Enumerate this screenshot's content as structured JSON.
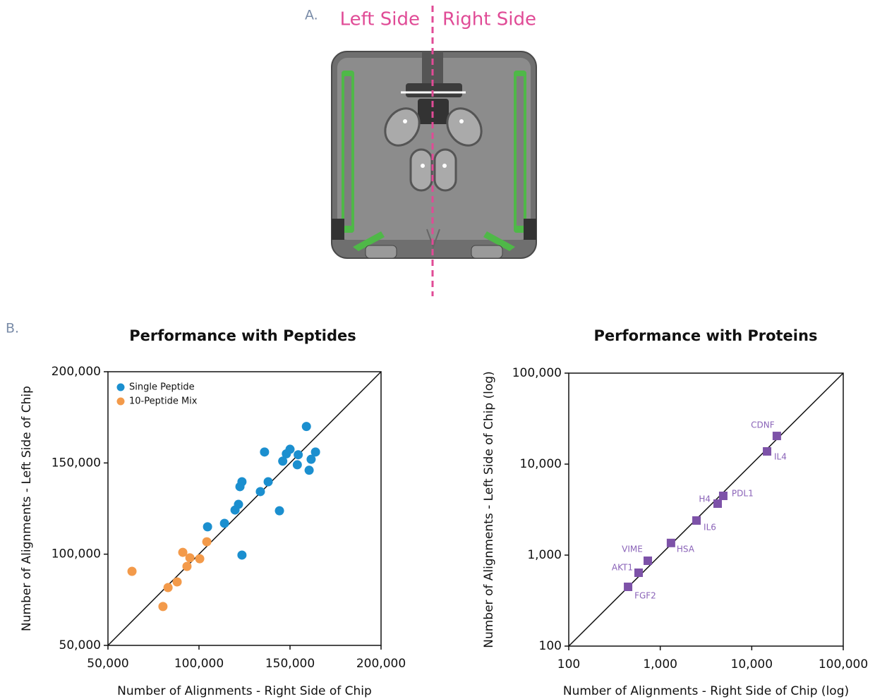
{
  "panel_a": {
    "label": "A.",
    "left_side": "Left Side",
    "right_side": "Right Side"
  },
  "panel_b": {
    "label": "B."
  },
  "chart_data": [
    {
      "type": "scatter",
      "title": "Performance with Peptides",
      "x_label": "Number of Alignments - Right Side of Chip",
      "y_label": "Number of Alignments - Left Side of Chip",
      "xlim": [
        50000,
        200000
      ],
      "ylim": [
        50000,
        200000
      ],
      "xticks": [
        {
          "value": 50000,
          "label": "50,000"
        },
        {
          "value": 100000,
          "label": "100,000"
        },
        {
          "value": 150000,
          "label": "150,000"
        },
        {
          "value": 200000,
          "label": "200,000"
        }
      ],
      "yticks": [
        {
          "value": 50000,
          "label": "50,000"
        },
        {
          "value": 100000,
          "label": "100,000"
        },
        {
          "value": 150000,
          "label": "150,000"
        },
        {
          "value": 200000,
          "label": "200,000"
        }
      ],
      "legend": "upper left",
      "diagonal_line": true,
      "marker": "circle",
      "series": [
        {
          "name": "Single Peptide",
          "color": "#1b8fcf",
          "x": [
            159000,
            136000,
            164000,
            150000,
            148000,
            154500,
            146000,
            161600,
            154000,
            160500,
            123600,
            122500,
            138000,
            133700,
            121700,
            119800,
            144200,
            114000,
            104700,
            123600
          ],
          "values": [
            170000,
            156000,
            156000,
            157500,
            155000,
            154500,
            151000,
            152000,
            149000,
            146000,
            139700,
            137000,
            139700,
            134300,
            127300,
            124200,
            123800,
            116900,
            115000,
            99500
          ]
        },
        {
          "name": "10-Peptide Mix",
          "color": "#f39a4a",
          "x": [
            63200,
            80200,
            83000,
            88000,
            91100,
            93400,
            95000,
            100400,
            104300
          ],
          "values": [
            90600,
            71300,
            81700,
            84800,
            101000,
            93300,
            98000,
            97500,
            106800
          ]
        }
      ]
    },
    {
      "type": "scatter",
      "title": "Performance with Proteins",
      "x_label": "Number of Alignments - Right Side of Chip (log)",
      "y_label": "Number of Alignments - Left Side of Chip (log)",
      "xscale": "log",
      "yscale": "log",
      "xlim": [
        100,
        100000
      ],
      "ylim": [
        100,
        100000
      ],
      "xticks": [
        100,
        {
          "value": 1000,
          "label": "1,000"
        },
        {
          "value": 10000,
          "label": "10,000"
        },
        {
          "value": 100000,
          "label": "100,000"
        }
      ],
      "yticks": [
        100,
        {
          "value": 1000,
          "label": "1,000"
        },
        {
          "value": 10000,
          "label": "10,000"
        },
        {
          "value": 100000,
          "label": "100,000"
        }
      ],
      "diagonal_line": true,
      "marker": "square",
      "series": [
        {
          "color": "#7d52a8",
          "label_color": "#8a63b8",
          "labels": [
            "CDNF",
            "IL4",
            "PDL1",
            "H4",
            "IL6",
            "HSA",
            "VIME",
            "AKT1",
            "FGF2"
          ],
          "x": [
            18800,
            14700,
            4880,
            4240,
            2490,
            1310,
            731,
            580,
            445
          ],
          "values": [
            20400,
            13800,
            4480,
            3680,
            2400,
            1360,
            867,
            640,
            448
          ]
        }
      ]
    }
  ]
}
